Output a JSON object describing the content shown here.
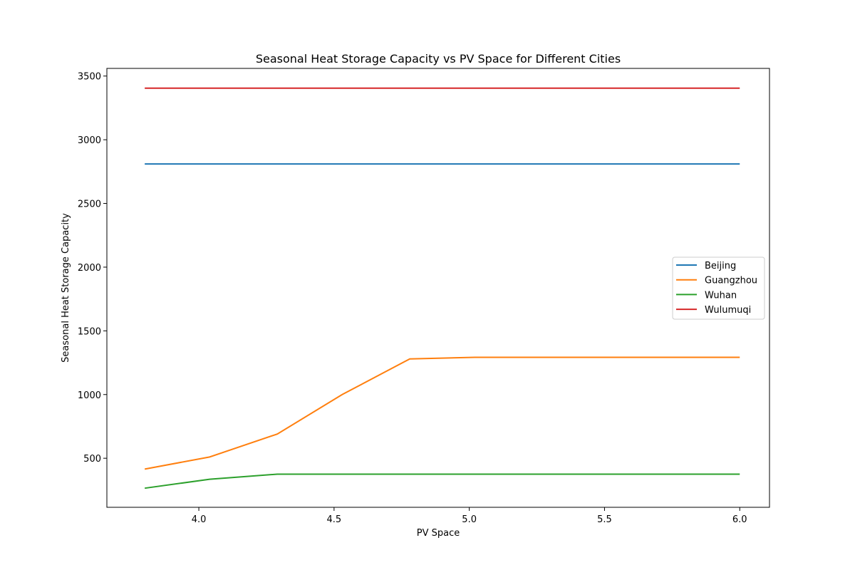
{
  "chart_data": {
    "type": "line",
    "title": "Seasonal Heat Storage Capacity vs PV Space for Different Cities",
    "xlabel": "PV Space",
    "ylabel": "Seasonal Heat Storage Capacity",
    "xlim": [
      3.66,
      6.11
    ],
    "ylim": [
      115,
      3560
    ],
    "xticks": [
      4.0,
      4.5,
      5.0,
      5.5,
      6.0
    ],
    "xtick_labels": [
      "4.0",
      "4.5",
      "5.0",
      "5.5",
      "6.0"
    ],
    "yticks": [
      500,
      1000,
      1500,
      2000,
      2500,
      3000,
      3500
    ],
    "ytick_labels": [
      "500",
      "1000",
      "1500",
      "2000",
      "2500",
      "3000",
      "3500"
    ],
    "x": [
      3.8,
      4.04,
      4.29,
      4.53,
      4.78,
      5.02,
      5.27,
      5.51,
      5.76,
      6.0
    ],
    "series": [
      {
        "name": "Beijing",
        "color": "#1f77b4",
        "values": [
          2810,
          2810,
          2810,
          2810,
          2810,
          2810,
          2810,
          2810,
          2810,
          2810
        ]
      },
      {
        "name": "Guangzhou",
        "color": "#ff7f0e",
        "values": [
          415,
          510,
          690,
          1000,
          1280,
          1292,
          1292,
          1292,
          1292,
          1292
        ]
      },
      {
        "name": "Wuhan",
        "color": "#2ca02c",
        "values": [
          265,
          335,
          375,
          375,
          375,
          375,
          375,
          375,
          375,
          375
        ]
      },
      {
        "name": "Wulumuqi",
        "color": "#d62728",
        "values": [
          3405,
          3405,
          3405,
          3405,
          3405,
          3405,
          3405,
          3405,
          3405,
          3405
        ]
      }
    ],
    "grid": false,
    "legend_position": "center-right"
  }
}
